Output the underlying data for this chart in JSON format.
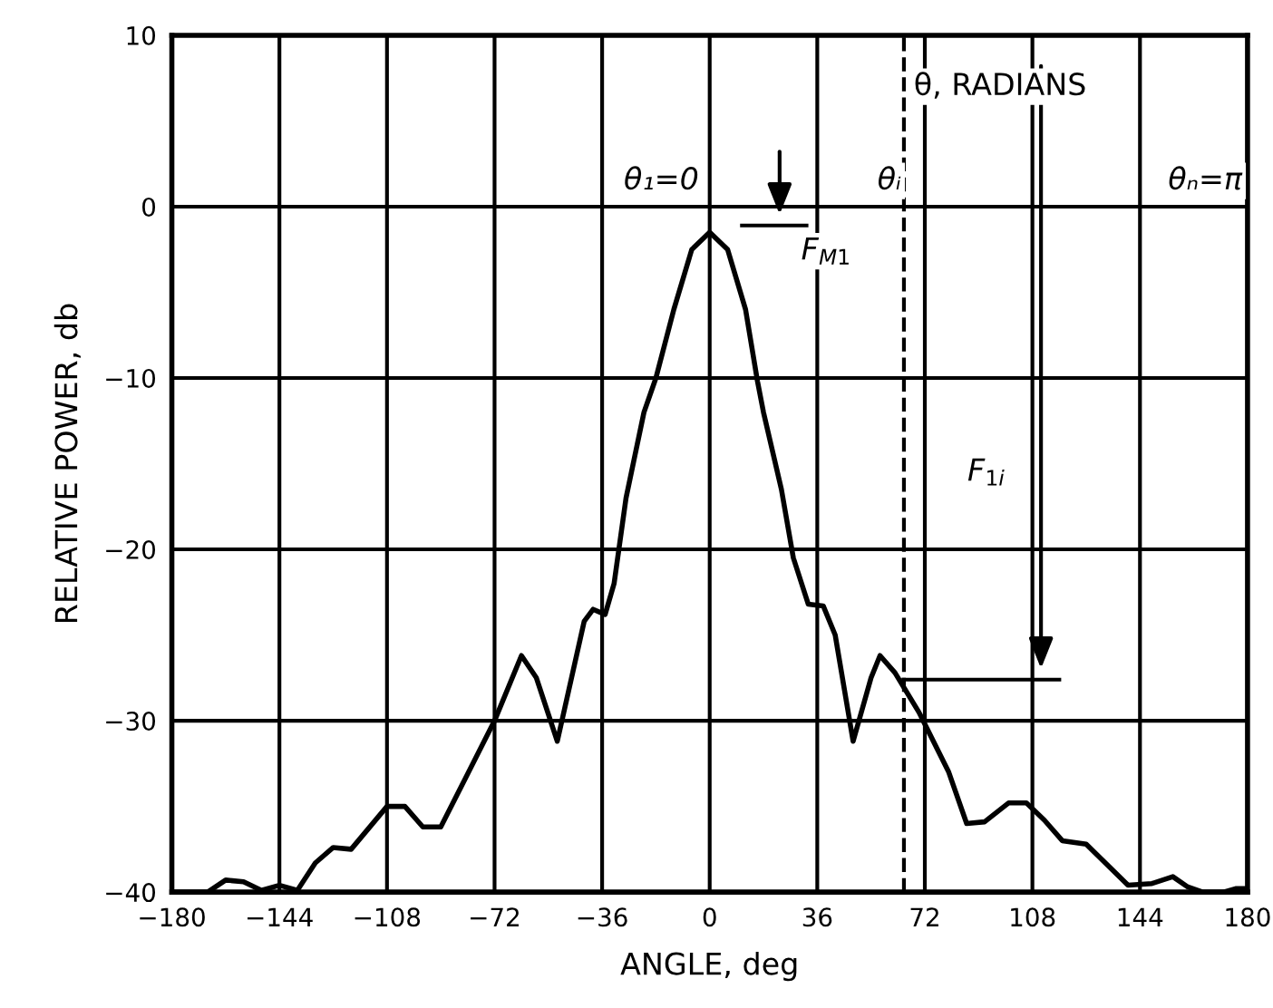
{
  "chart_data": {
    "type": "line",
    "xlabel": "ANGLE, deg",
    "ylabel": "RELATIVE POWER, db",
    "series": [
      {
        "color": "#000000",
        "x": [
          -180,
          -175,
          -168,
          -162,
          -156,
          -150,
          -144,
          -138,
          -132,
          -126,
          -120,
          -108,
          -102,
          -96,
          -90,
          -72,
          -63,
          -58,
          -51,
          -42,
          -39,
          -35,
          -32,
          -28,
          -22,
          -18,
          -12,
          -6,
          0,
          6,
          12,
          16,
          18,
          24,
          28,
          33,
          38,
          42,
          48,
          54,
          57,
          62,
          70,
          80,
          86,
          92,
          100,
          106,
          112,
          118,
          126,
          140,
          148,
          155,
          160,
          165,
          172,
          176,
          180
        ],
        "values": [
          -40,
          -40,
          -40,
          -39.3,
          -39.4,
          -39.9,
          -39.6,
          -39.9,
          -38.3,
          -37.4,
          -37.5,
          -35.0,
          -35.0,
          -36.2,
          -36.2,
          -30,
          -26.2,
          -27.5,
          -31.2,
          -24.2,
          -23.5,
          -23.8,
          -22,
          -17,
          -12,
          -10,
          -6,
          -2.5,
          -1.5,
          -2.5,
          -6,
          -10.2,
          -12,
          -16.5,
          -20.5,
          -23.2,
          -23.3,
          -25,
          -31.2,
          -27.5,
          -26.2,
          -27.2,
          -29.5,
          -33,
          -36,
          -35.9,
          -34.8,
          -34.8,
          -35.8,
          -37,
          -37.2,
          -39.6,
          -39.5,
          -39.1,
          -39.7,
          -40,
          -40,
          -39.8,
          -39.8
        ]
      }
    ],
    "xlim": [
      -180,
      180
    ],
    "ylim": [
      -40,
      10
    ],
    "xticks": [
      {
        "value": -180,
        "label": "−180"
      },
      {
        "value": -144,
        "label": "−144"
      },
      {
        "value": -108,
        "label": "−108"
      },
      {
        "value": -72,
        "label": "−72"
      },
      {
        "value": -36,
        "label": "−36"
      },
      0,
      36,
      72,
      108,
      144,
      180
    ],
    "yticks": [
      {
        "value": -40,
        "label": "−40"
      },
      {
        "value": -30,
        "label": "−30"
      },
      {
        "value": -20,
        "label": "−20"
      },
      {
        "value": -10,
        "label": "−10"
      },
      0,
      10
    ],
    "grid": true,
    "line_style": "solid",
    "marker": "none",
    "ref_lines": [
      {
        "axis": "x",
        "value": 65,
        "line_style": "dashed",
        "color": "#000000"
      }
    ],
    "annotations": [
      "θ, RADIANS",
      "θ₁=0",
      "θᵢ",
      "θₙ=π",
      "F$_{M1}$",
      "F$_{1i}$"
    ]
  }
}
